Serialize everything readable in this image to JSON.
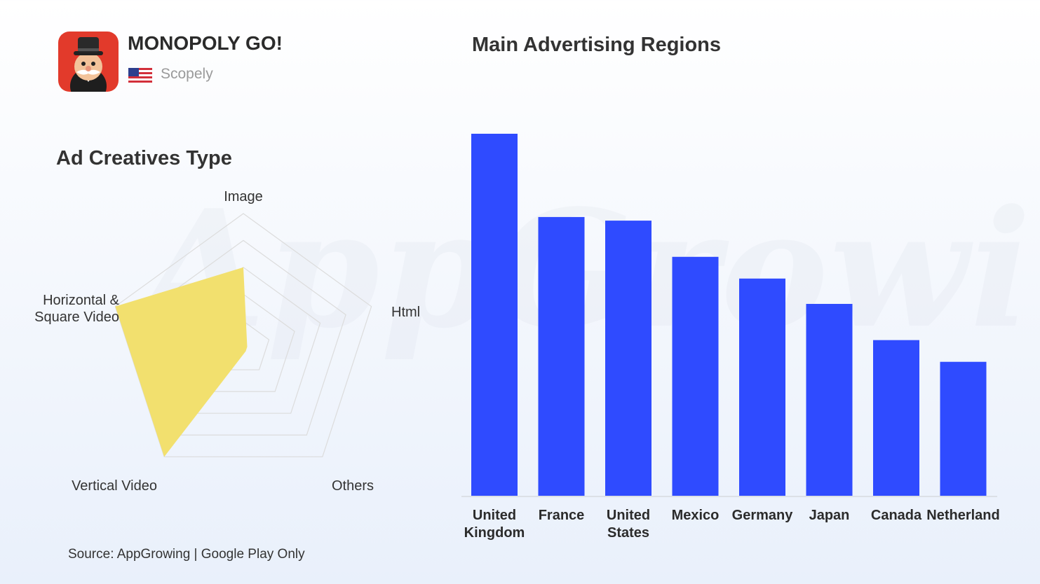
{
  "app": {
    "name": "MONOPOLY GO!",
    "publisher": "Scopely",
    "icon": "monopoly-man-icon",
    "flag": "us-flag-icon"
  },
  "source": "Source: AppGrowing | Google Play Only",
  "watermark": "AppGrowing",
  "colors": {
    "radar_fill": "#f2e06e",
    "bar": "#2f4bff",
    "grid": "#dcdcdc"
  },
  "chart_data": [
    {
      "type": "radar",
      "title": "Ad Creatives Type",
      "axes": [
        "Image",
        "Html",
        "Others",
        "Vertical Video",
        "Horizontal & Square Video"
      ],
      "axis_label_lines": [
        [
          "Image"
        ],
        [
          "Html"
        ],
        [
          "Others"
        ],
        [
          "Vertical Video"
        ],
        [
          "Horizontal &",
          "Square Video"
        ]
      ],
      "values": [
        0.6,
        0.03,
        0.03,
        1.0,
        1.0
      ],
      "range": [
        0,
        1
      ],
      "rings": 5
    },
    {
      "type": "bar",
      "title": "Main Advertising Regions",
      "categories": [
        "United Kingdom",
        "France",
        "United States",
        "Mexico",
        "Germany",
        "Japan",
        "Canada",
        "Netherland"
      ],
      "category_lines": [
        [
          "United",
          "Kingdom"
        ],
        [
          "France"
        ],
        [
          "United",
          "States"
        ],
        [
          "Mexico"
        ],
        [
          "Germany"
        ],
        [
          "Japan"
        ],
        [
          "Canada"
        ],
        [
          "Netherland"
        ]
      ],
      "values": [
        100,
        77,
        76,
        66,
        60,
        53,
        43,
        37
      ],
      "ylim": [
        0,
        100
      ],
      "grid": false,
      "legend": "none"
    }
  ]
}
